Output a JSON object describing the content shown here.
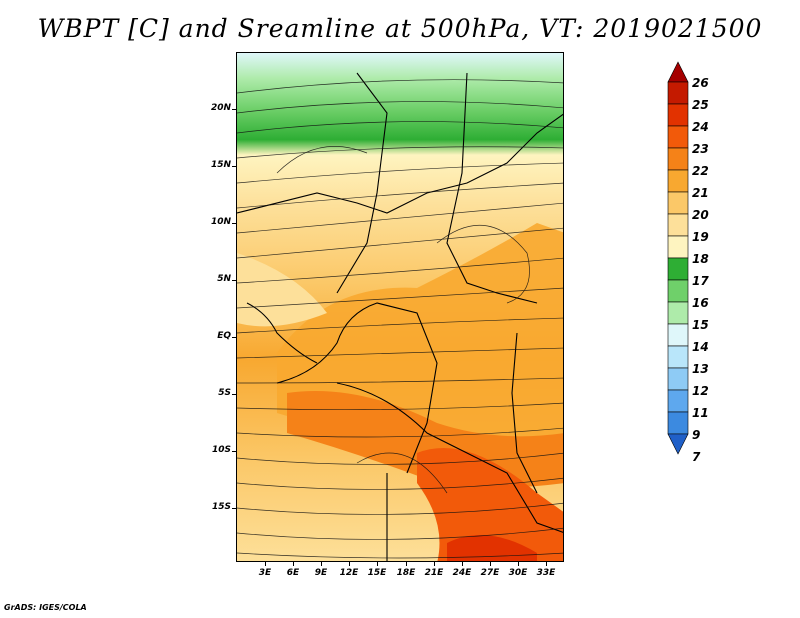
{
  "title": "WBPT [C] and Sreamline at 500hPa, VT: 2019021500",
  "credit": "GrADS: IGES/COLA",
  "lat_labels": [
    "20N",
    "15N",
    "10N",
    "5N",
    "EQ",
    "5S",
    "10S",
    "15S"
  ],
  "lon_labels": [
    "3E",
    "6E",
    "9E",
    "12E",
    "15E",
    "18E",
    "21E",
    "24E",
    "27E",
    "30E",
    "33E"
  ],
  "colorbar": {
    "labels": [
      "26",
      "25",
      "24",
      "23",
      "22",
      "21",
      "20",
      "19",
      "18",
      "17",
      "16",
      "15",
      "14",
      "13",
      "12",
      "11",
      "9",
      "7"
    ],
    "colors": [
      "#a50000",
      "#c41a00",
      "#e23200",
      "#f25a0a",
      "#f58218",
      "#f8a830",
      "#fbc868",
      "#fde09a",
      "#fef4c0",
      "#2eae34",
      "#6fd06a",
      "#aeebaa",
      "#dff7fa",
      "#b9e6fa",
      "#8ecbf5",
      "#5ea8ee",
      "#3c8ae0",
      "#2060c8"
    ]
  },
  "map": {
    "field": "WBPT",
    "units": "C",
    "level": "500hPa",
    "valid_time": "2019021500",
    "lat_range": [
      "18S",
      "24N"
    ],
    "lon_range": [
      "0E",
      "35E"
    ],
    "features": [
      "shaded wet-bulb potential temperature",
      "streamlines",
      "country boundaries",
      "coastlines"
    ]
  }
}
